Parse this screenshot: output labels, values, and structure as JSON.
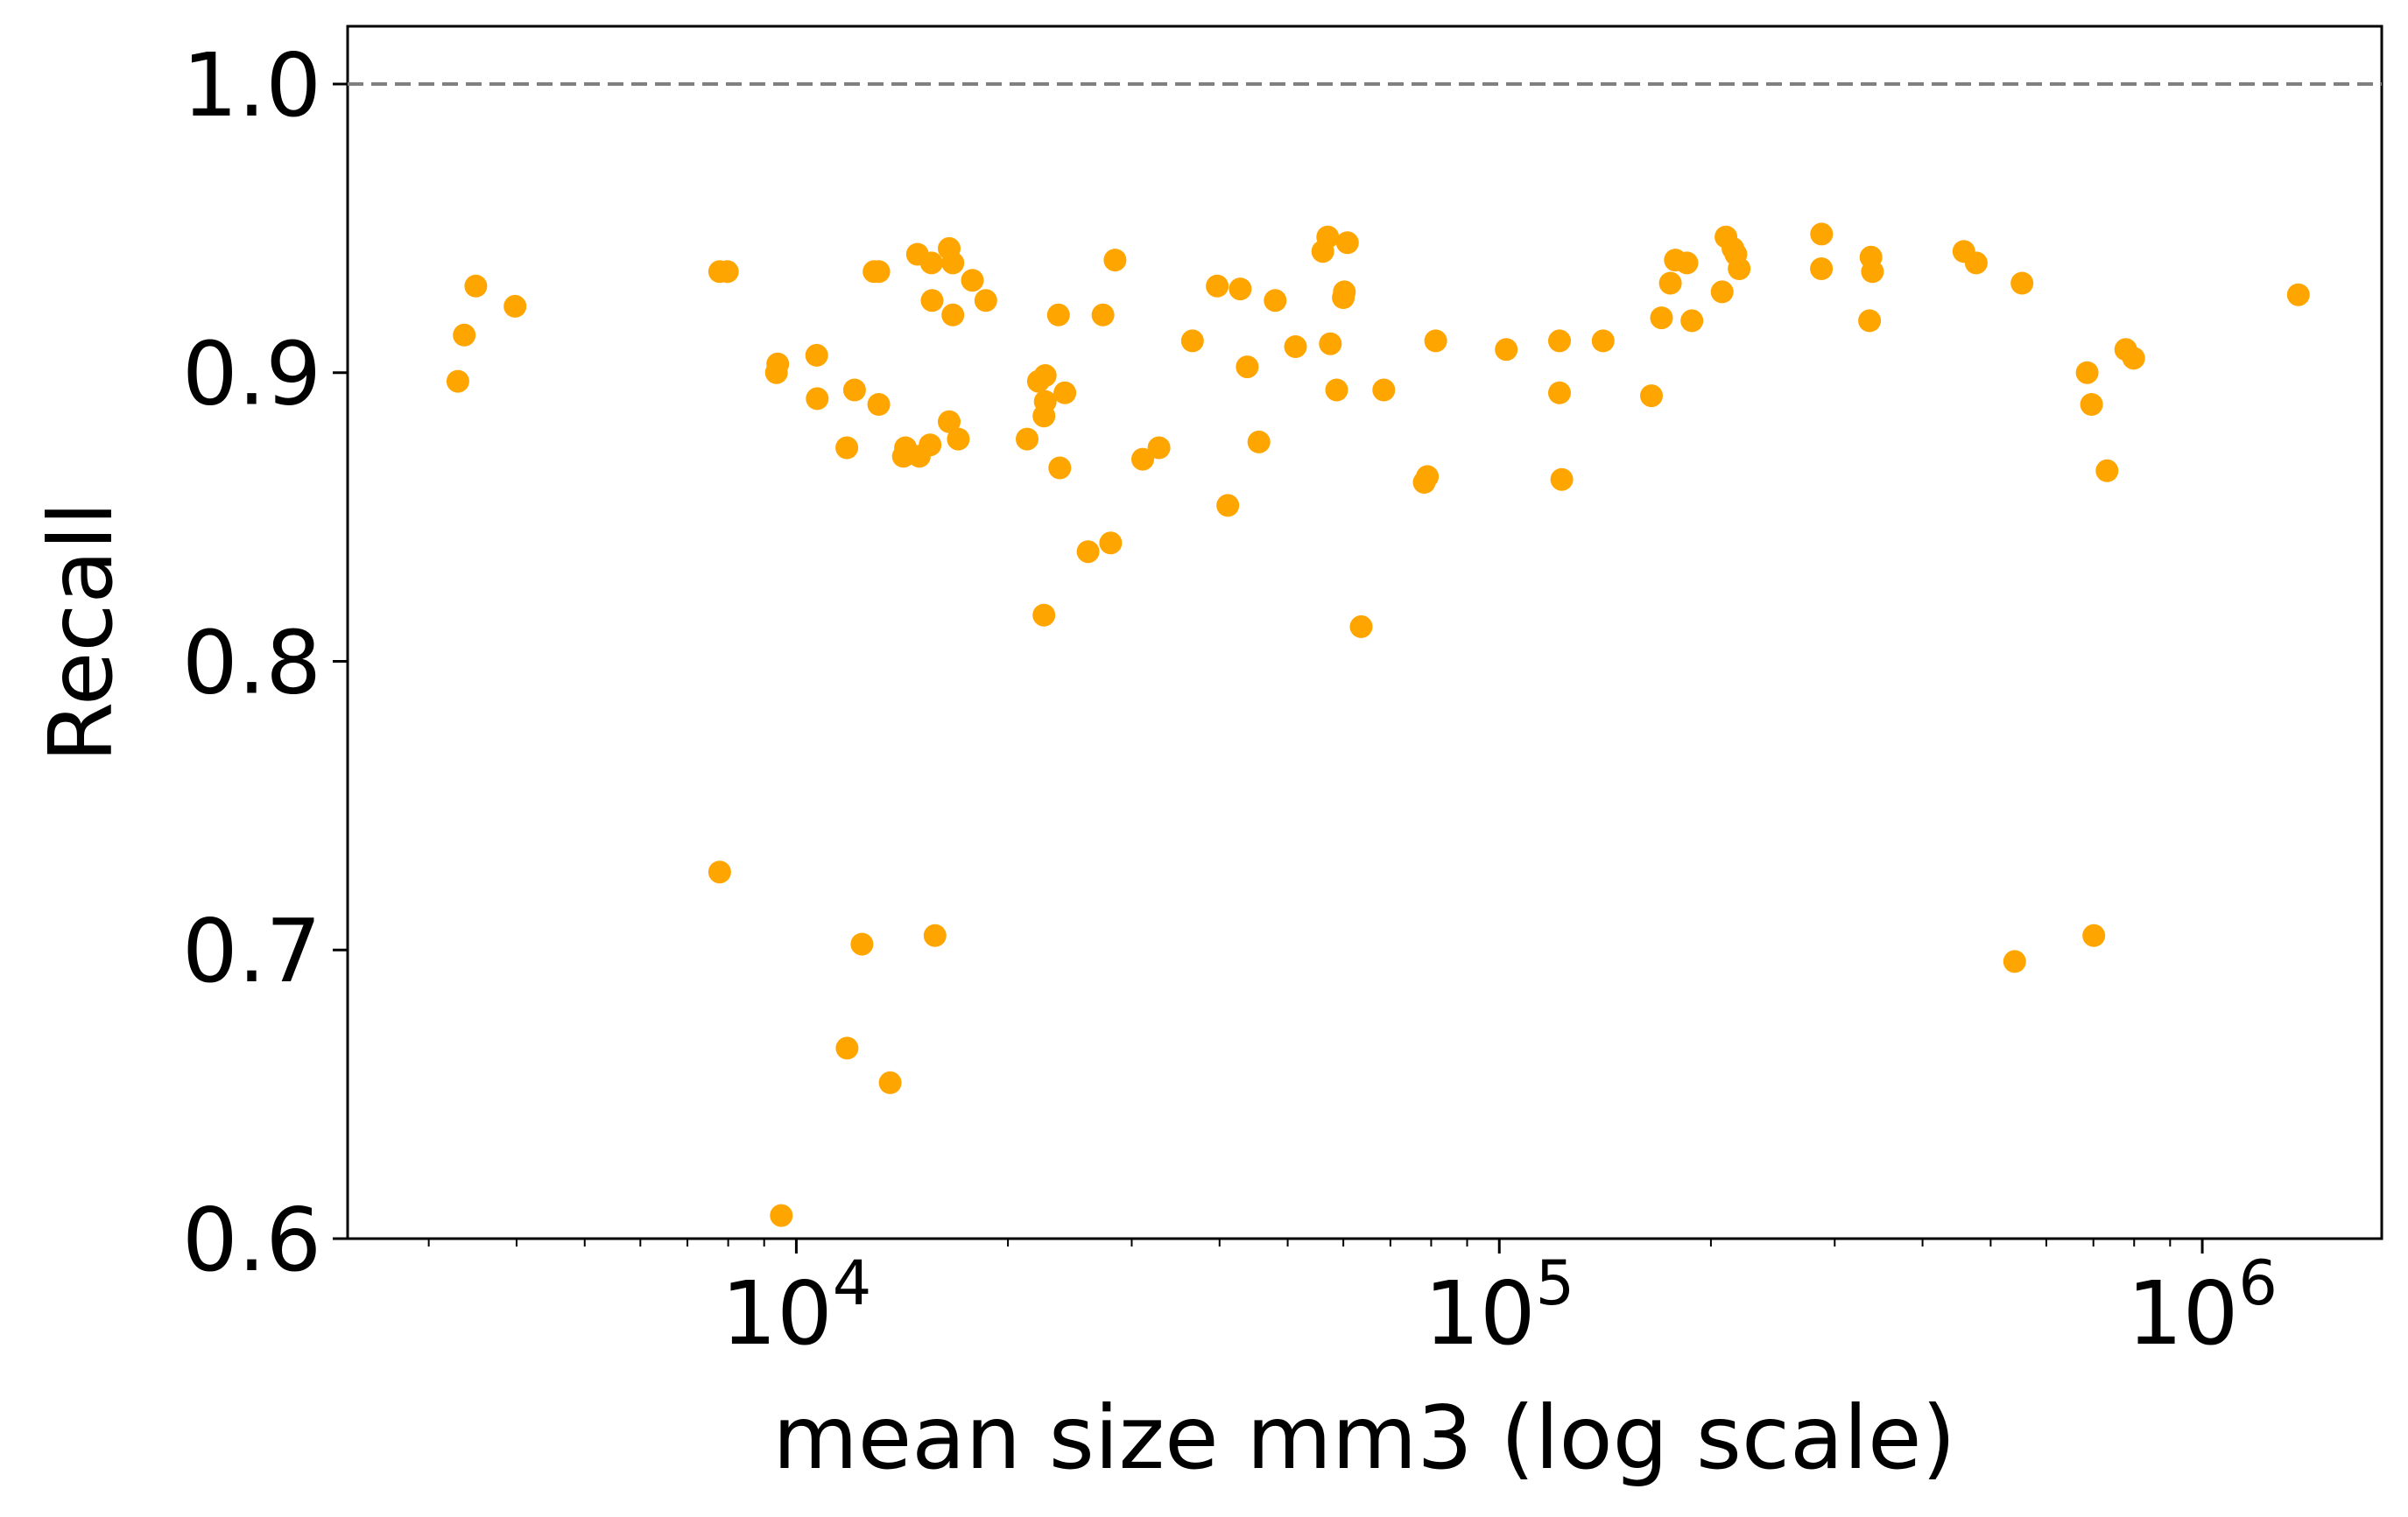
{
  "chart_data": {
    "type": "scatter",
    "title": "",
    "xlabel": "mean size mm3 (log scale)",
    "ylabel": "Recall",
    "xscale": "log",
    "xlim": [
      2300,
      1800000
    ],
    "ylim": [
      0.6,
      1.02
    ],
    "grid": false,
    "legend": "none",
    "x_ticks": [
      {
        "value": 10000,
        "base": "10",
        "exp": "4"
      },
      {
        "value": 100000,
        "base": "10",
        "exp": "5"
      },
      {
        "value": 1000000,
        "base": "10",
        "exp": "6"
      }
    ],
    "y_ticks": [
      {
        "value": 0.6,
        "label": "0.6"
      },
      {
        "value": 0.7,
        "label": "0.7"
      },
      {
        "value": 0.8,
        "label": "0.8"
      },
      {
        "value": 0.9,
        "label": "0.9"
      },
      {
        "value": 1.0,
        "label": "1.0"
      }
    ],
    "reference_line": {
      "y": 1.0,
      "style": "dashed",
      "color": "#808080"
    },
    "marker_color": "#FFA500",
    "points": [
      [
        3300,
        0.897
      ],
      [
        3370,
        0.913
      ],
      [
        3500,
        0.93
      ],
      [
        3980,
        0.923
      ],
      [
        7780,
        0.935
      ],
      [
        7980,
        0.935
      ],
      [
        7780,
        0.727
      ],
      [
        9410,
        0.903
      ],
      [
        9370,
        0.9
      ],
      [
        9520,
        0.608
      ],
      [
        10690,
        0.906
      ],
      [
        10710,
        0.891
      ],
      [
        11800,
        0.874
      ],
      [
        11810,
        0.666
      ],
      [
        12100,
        0.894
      ],
      [
        12400,
        0.702
      ],
      [
        12900,
        0.935
      ],
      [
        13100,
        0.889
      ],
      [
        13100,
        0.935
      ],
      [
        13600,
        0.654
      ],
      [
        14200,
        0.871
      ],
      [
        14300,
        0.874
      ],
      [
        14870,
        0.941
      ],
      [
        14960,
        0.871
      ],
      [
        15570,
        0.938
      ],
      [
        15500,
        0.875
      ],
      [
        15600,
        0.925
      ],
      [
        15750,
        0.705
      ],
      [
        16500,
        0.943
      ],
      [
        16500,
        0.883
      ],
      [
        16700,
        0.938
      ],
      [
        16700,
        0.92
      ],
      [
        17000,
        0.877
      ],
      [
        17800,
        0.932
      ],
      [
        18600,
        0.925
      ],
      [
        21300,
        0.877
      ],
      [
        22100,
        0.897
      ],
      [
        22500,
        0.816
      ],
      [
        22600,
        0.899
      ],
      [
        22600,
        0.89
      ],
      [
        22500,
        0.885
      ],
      [
        23600,
        0.92
      ],
      [
        23700,
        0.867
      ],
      [
        24100,
        0.893
      ],
      [
        26000,
        0.838
      ],
      [
        27300,
        0.92
      ],
      [
        28000,
        0.841
      ],
      [
        28400,
        0.939
      ],
      [
        31100,
        0.87
      ],
      [
        32800,
        0.874
      ],
      [
        36600,
        0.911
      ],
      [
        39700,
        0.93
      ],
      [
        41100,
        0.854
      ],
      [
        42800,
        0.929
      ],
      [
        43800,
        0.902
      ],
      [
        45500,
        0.876
      ],
      [
        48000,
        0.925
      ],
      [
        51300,
        0.909
      ],
      [
        56100,
        0.942
      ],
      [
        57000,
        0.947
      ],
      [
        57500,
        0.91
      ],
      [
        58700,
        0.894
      ],
      [
        60000,
        0.926
      ],
      [
        60200,
        0.928
      ],
      [
        60800,
        0.945
      ],
      [
        63600,
        0.812
      ],
      [
        68500,
        0.894
      ],
      [
        78200,
        0.862
      ],
      [
        79000,
        0.864
      ],
      [
        81200,
        0.911
      ],
      [
        102300,
        0.908
      ],
      [
        121800,
        0.893
      ],
      [
        121800,
        0.911
      ],
      [
        122700,
        0.863
      ],
      [
        140500,
        0.911
      ],
      [
        164600,
        0.892
      ],
      [
        170100,
        0.919
      ],
      [
        175100,
        0.931
      ],
      [
        178000,
        0.939
      ],
      [
        184900,
        0.938
      ],
      [
        187900,
        0.918
      ],
      [
        207500,
        0.928
      ],
      [
        210100,
        0.947
      ],
      [
        215000,
        0.943
      ],
      [
        217000,
        0.941
      ],
      [
        219400,
        0.936
      ],
      [
        287200,
        0.936
      ],
      [
        287400,
        0.948
      ],
      [
        336300,
        0.918
      ],
      [
        337800,
        0.94
      ],
      [
        339500,
        0.935
      ],
      [
        458000,
        0.942
      ],
      [
        476900,
        0.938
      ],
      [
        540900,
        0.696
      ],
      [
        554100,
        0.931
      ],
      [
        685900,
        0.9
      ],
      [
        695700,
        0.889
      ],
      [
        700900,
        0.705
      ],
      [
        732100,
        0.866
      ],
      [
        778400,
        0.908
      ],
      [
        798700,
        0.905
      ],
      [
        1370000,
        0.927
      ]
    ]
  }
}
